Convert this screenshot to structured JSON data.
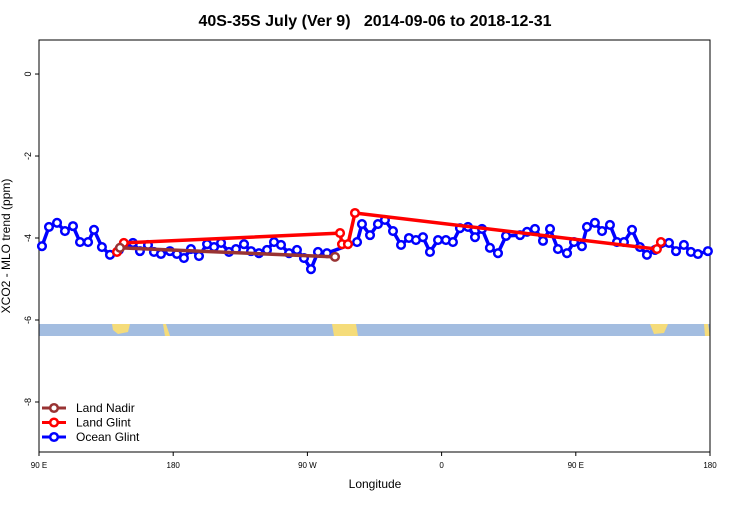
{
  "chart_data": {
    "type": "line",
    "title": "40S-35S July (Ver 9)   2014-09-06 to 2018-12-31",
    "x_label": "Longitude",
    "y_label": "XCO2 - MLO trend (ppm)",
    "xlim": [
      90,
      540
    ],
    "ylim": [
      -9.22,
      0.83
    ],
    "xticks": [
      {
        "value": 90,
        "label": "90 E"
      },
      {
        "value": 180,
        "label": "180"
      },
      {
        "value": 270,
        "label": "90 W"
      },
      {
        "value": 360,
        "label": "0"
      },
      {
        "value": 450,
        "label": "90 E"
      },
      {
        "value": 540,
        "label": "180"
      }
    ],
    "yticks": [
      0,
      -2,
      -4,
      -6,
      -8
    ],
    "legend": "bottom-left",
    "series": [
      {
        "name": "Land Nadir",
        "color": "#993333",
        "x": [
          144.3,
          288.5
        ],
        "values": [
          -4.24,
          -4.46
        ]
      },
      {
        "name": "Land Glint",
        "color": "#ff0000",
        "x": [
          142.3,
          146.9,
          291.9,
          293.2,
          297.2,
          301.9,
          504.4,
          507.1
        ],
        "values": [
          -4.34,
          -4.12,
          -3.88,
          -4.15,
          -4.15,
          -3.39,
          -4.27,
          -4.1
        ]
      },
      {
        "name": "Ocean Glint",
        "color": "#0000ff",
        "x": [
          92,
          96.7,
          102.1,
          107.4,
          112.8,
          117.5,
          122.9,
          126.9,
          132.2,
          137.6,
          143.6,
          153,
          157.7,
          163.1,
          167.1,
          171.8,
          177.8,
          182.5,
          187.2,
          191.9,
          197.3,
          202.7,
          207.4,
          212.1,
          217.4,
          222.1,
          227.5,
          232.2,
          237.5,
          242.9,
          247.6,
          252.3,
          257.7,
          263,
          267.7,
          272.4,
          277.1,
          283.1,
          303.3,
          306.6,
          312,
          317.3,
          322,
          327.4,
          332.8,
          338.1,
          342.8,
          347.5,
          352.2,
          357.6,
          362.9,
          367.6,
          372.3,
          377.7,
          382.4,
          387.1,
          392.4,
          397.8,
          403.2,
          412.6,
          417.3,
          422.6,
          428,
          432.7,
          438,
          444.1,
          448.8,
          454.1,
          457.5,
          462.8,
          467.6,
          472.9,
          477.6,
          482.3,
          487.7,
          493,
          497.7,
          503.1,
          512.5,
          517.2,
          522.5,
          527.2,
          531.9,
          538.6
        ],
        "values": [
          -4.2,
          -3.73,
          -3.63,
          -3.83,
          -3.71,
          -4.1,
          -4.1,
          -3.8,
          -4.22,
          -4.41,
          -4.29,
          -4.12,
          -4.32,
          -4.17,
          -4.34,
          -4.39,
          -4.32,
          -4.39,
          -4.49,
          -4.27,
          -4.44,
          -4.15,
          -4.22,
          -4.12,
          -4.34,
          -4.27,
          -4.15,
          -4.32,
          -4.37,
          -4.29,
          -4.1,
          -4.17,
          -4.37,
          -4.29,
          -4.49,
          -4.76,
          -4.34,
          -4.37,
          -4.1,
          -3.66,
          -3.93,
          -3.66,
          -3.56,
          -3.83,
          -4.17,
          -4,
          -4.05,
          -3.98,
          -4.34,
          -4.05,
          -4.05,
          -4.1,
          -3.76,
          -3.73,
          -3.98,
          -3.78,
          -4.24,
          -4.37,
          -3.95,
          -3.93,
          -3.85,
          -3.78,
          -4.07,
          -3.78,
          -4.27,
          -4.37,
          -4.1,
          -4.2,
          -3.73,
          -3.63,
          -3.83,
          -3.68,
          -4.1,
          -4.1,
          -3.8,
          -4.22,
          -4.41,
          -4.29,
          -4.12,
          -4.32,
          -4.17,
          -4.34,
          -4.39,
          -4.32
        ]
      }
    ]
  }
}
